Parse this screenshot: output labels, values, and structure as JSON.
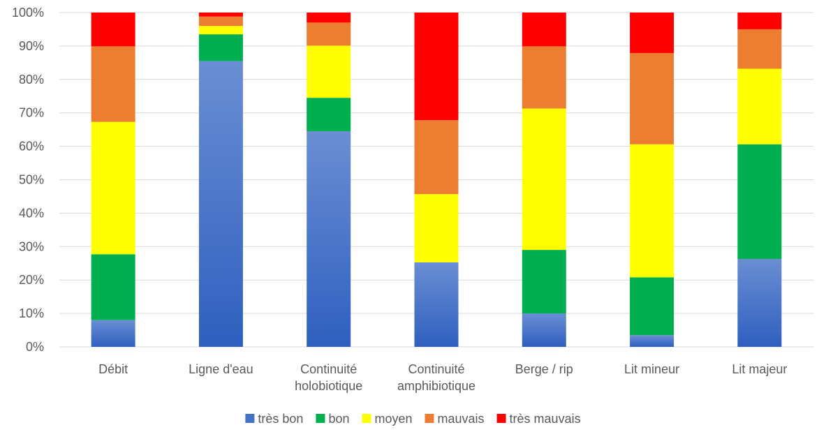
{
  "chart_data": {
    "type": "bar",
    "stacked": "percent",
    "categories": [
      [
        "Débit"
      ],
      [
        "Ligne d'eau"
      ],
      [
        "Continuité",
        "holobiotique"
      ],
      [
        "Continuité",
        "amphibiotique"
      ],
      [
        "Berge / rip"
      ],
      [
        "Lit mineur"
      ],
      [
        "Lit majeur"
      ]
    ],
    "series": [
      {
        "name": "très bon",
        "color": "#4472C4",
        "values": [
          8,
          85.5,
          64.5,
          25.3,
          10,
          3.5,
          26.3
        ]
      },
      {
        "name": "bon",
        "color": "#00B050",
        "values": [
          19.7,
          8,
          10,
          0,
          19,
          17.3,
          34.3
        ]
      },
      {
        "name": "moyen",
        "color": "#FFFF00",
        "values": [
          39.6,
          2.5,
          15.6,
          20.4,
          42.3,
          39.8,
          22.6
        ]
      },
      {
        "name": "mauvais",
        "color": "#ED7D31",
        "values": [
          22.6,
          2.8,
          6.9,
          22.1,
          18.6,
          27.3,
          11.8
        ]
      },
      {
        "name": "très mauvais",
        "color": "#FF0000",
        "values": [
          10.1,
          1.2,
          3,
          32.2,
          10.1,
          12.1,
          5
        ]
      }
    ],
    "yticks": [
      "0%",
      "10%",
      "20%",
      "30%",
      "40%",
      "50%",
      "60%",
      "70%",
      "80%",
      "90%",
      "100%"
    ],
    "ylim": [
      0,
      100
    ],
    "grid": true,
    "legend": "bottom"
  }
}
